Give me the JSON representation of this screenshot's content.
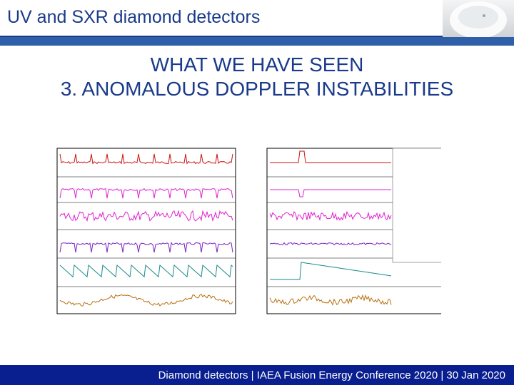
{
  "header": {
    "title": "UV and SXR diamond detectors"
  },
  "slide": {
    "title_line1": "WHAT WE HAVE SEEN",
    "title_line2": "3. ANOMALOUS DOPPLER INSTABILITIES"
  },
  "footer": {
    "text": "Diamond detectors | IAEA Fusion Energy Conference 2020 | 30 Jan 2020"
  },
  "colors": {
    "title": "#1a3a8a",
    "bar": "#2f5fa8",
    "footer": "#0a1f8f",
    "series": [
      "#cc1111",
      "#e020d0",
      "#e020d0",
      "#7a20c0",
      "#1a8a8a",
      "#b87010"
    ]
  }
}
